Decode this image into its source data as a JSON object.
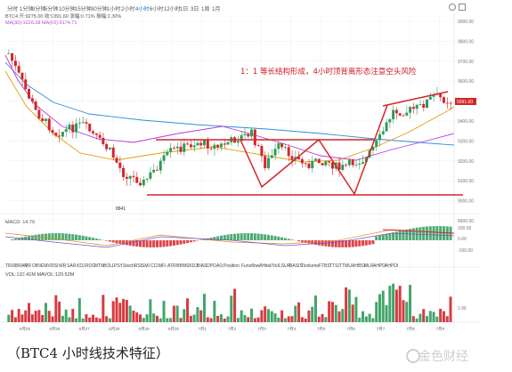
{
  "toolbar": {
    "timeframes": [
      "分时",
      "1分钟",
      "3分钟",
      "5分钟",
      "10分钟",
      "15分钟",
      "30分钟",
      "1小时",
      "2小时",
      "4小时",
      "6小时",
      "12小时",
      "1日",
      "3日",
      "1周",
      "1月"
    ],
    "active_index": 9
  },
  "indicators": {
    "price_line": "BTC4 开:9275.00 收:9391.60  涨幅:0.71%  振幅:2.30%",
    "ma_line": "MA(30):9226.28  MA(60):9174.71",
    "macd_line": "MACD: 14.70",
    "vol_line": "VOL:132.41M  MAVOL:120.52M"
  },
  "annotation": "1：1  等长结构形成，4小时顶背离形态注意空头风险",
  "price_axis": {
    "labels": [
      "9900.00",
      "9800.00",
      "9700.00",
      "9600.00",
      "9500.00",
      "9400.00",
      "9300.00",
      "9200.00",
      "9100.00",
      "9000.00",
      "8900.00"
    ],
    "current_price": "9391.60",
    "low_label": "8841"
  },
  "macd_axis": [
    "100.00",
    "0.00",
    "-100.00"
  ],
  "vol_axis": "1.96",
  "tools": [
    "TRIX",
    "BRAR",
    "VR",
    "OBV",
    "EMV",
    "RSI",
    "WR",
    "SAR",
    "KDJ",
    "ROC",
    "MTM",
    "BOLL",
    "PSY",
    "StochRSI",
    "SMI",
    "CCI",
    "MFI",
    "ATR",
    "BBW",
    "SKDJ",
    "BIAS",
    "DPO",
    "AO",
    "Position",
    "Funoflow",
    "AHitel/Vol",
    "LSUR",
    "BASIS",
    "Tivolume",
    "FTBS",
    "TTSI",
    "TTMU",
    "AHBSI",
    "MLR",
    "AHPD",
    "AHPDI"
  ],
  "date_labels": [
    "6月25",
    "6月26",
    "6月27",
    "6月28",
    "6月29",
    "6月30",
    "7月1",
    "7月2",
    "7月3",
    "7月4",
    "7月5",
    "7月6",
    "7月7",
    "7月8",
    "7月9"
  ],
  "caption": "（BTC4 小时线技术特征）",
  "watermark": "金色财经",
  "colors": {
    "up": "#2e9b5a",
    "down": "#d3262b",
    "annot": "#d0161e",
    "ma_blue": "#2f8fd0",
    "ma_orange": "#e0a010",
    "ma_purple": "#b63ad6"
  }
}
